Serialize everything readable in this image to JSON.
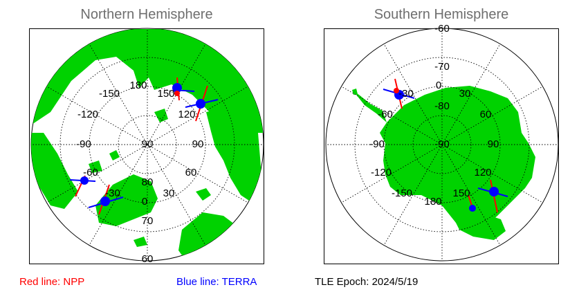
{
  "north": {
    "title": "Northern Hemisphere",
    "lon_labels": [
      "180",
      "150",
      "120",
      "90",
      "60",
      "30",
      "0",
      "-30",
      "-60",
      "-90",
      "-120",
      "-150"
    ],
    "lat_labels": [
      "90",
      "80",
      "70",
      "60"
    ]
  },
  "south": {
    "title": "Southern Hemisphere",
    "lon_labels": [
      "0",
      "30",
      "60",
      "90",
      "120",
      "150",
      "180",
      "-150",
      "-120",
      "-90",
      "-60",
      "-30"
    ],
    "lat_labels": [
      "-90",
      "-80",
      "-70",
      "-60"
    ]
  },
  "legend": {
    "red": "Red line: NPP",
    "blue": "Blue line: TERRA",
    "epoch_label": "TLE Epoch:",
    "epoch_value": "2024/5/19"
  },
  "colors": {
    "land": "#00d200",
    "ocean": "#ffffff",
    "npp": "#ff0000",
    "terra": "#0000ff"
  }
}
